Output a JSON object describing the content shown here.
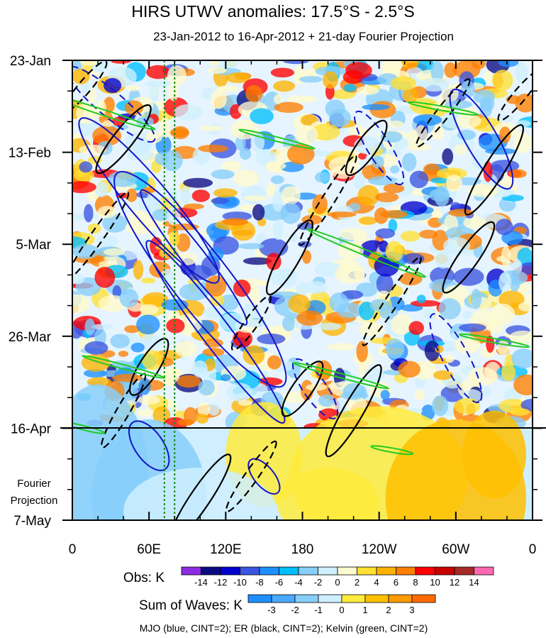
{
  "chart_data": {
    "type": "heatmap",
    "title": "HIRS UTWV anomalies: 17.5°S - 2.5°S",
    "subtitle": "23-Jan-2012 to 16-Apr-2012 + 21-day Fourier Projection",
    "x_ticks": [
      "0",
      "60E",
      "120E",
      "180",
      "120W",
      "60W",
      "0"
    ],
    "x_range_deg": [
      0,
      360
    ],
    "y_ticks": [
      "23-Jan",
      "13-Feb",
      "5-Mar",
      "26-Mar",
      "16-Apr",
      "7-May"
    ],
    "y_range_days": [
      0,
      105
    ],
    "observation_end_day": 84,
    "projection_label": [
      "Fourier",
      "Projection"
    ],
    "reference_lines_deg": [
      72,
      80
    ],
    "obs_colorbar": {
      "label": "Obs: K",
      "ticks": [
        "-14",
        "-12",
        "-10",
        "-8",
        "-6",
        "-4",
        "-2",
        "0",
        "2",
        "4",
        "6",
        "8",
        "10",
        "12",
        "14"
      ],
      "colors": [
        "#8b2be2",
        "#0a0a80",
        "#0000cd",
        "#3a55e0",
        "#1e8fff",
        "#00bfff",
        "#87cefa",
        "#cfefff",
        "#fffacd",
        "#ffe033",
        "#ffb300",
        "#ff7f00",
        "#ff0000",
        "#c80000",
        "#a52a2a",
        "#ff69b4"
      ]
    },
    "waves_colorbar": {
      "label": "Sum of Waves: K",
      "ticks": [
        "-3",
        "-2",
        "-1",
        "0",
        "1",
        "2",
        "3"
      ],
      "colors": [
        "#1e8fff",
        "#4aa8ff",
        "#87cefa",
        "#cfefff",
        "#ffeb3b",
        "#ffc000",
        "#ff9a00",
        "#ff6a00"
      ]
    },
    "legend_note": "MJO (blue, CINT=2); ER (black, CINT=2); Kelvin (green, CINT=2)",
    "contour_series": [
      {
        "name": "MJO",
        "color": "#1414c8"
      },
      {
        "name": "ER",
        "color": "#000000"
      },
      {
        "name": "Kelvin",
        "color": "#22cc22"
      }
    ]
  }
}
